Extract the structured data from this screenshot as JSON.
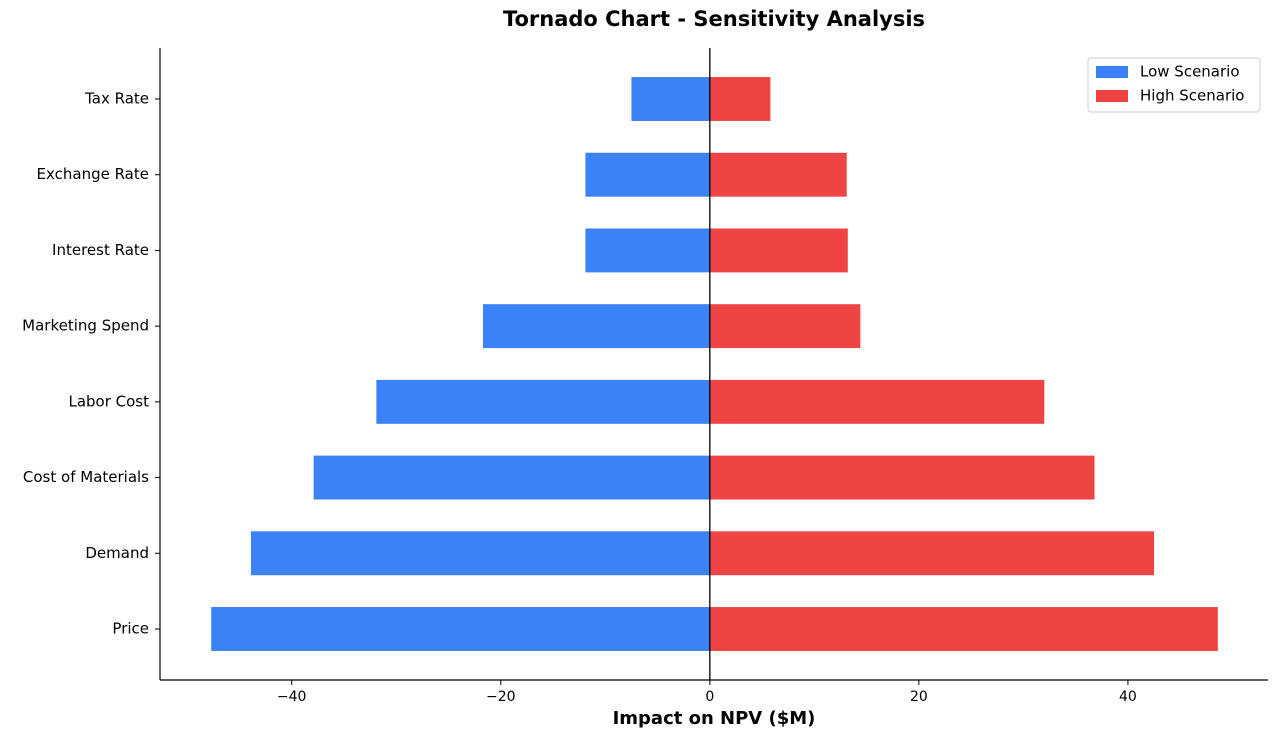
{
  "chart_data": {
    "type": "tornado",
    "title": "Tornado Chart - Sensitivity Analysis",
    "x_label": "Impact on NPV ($M)",
    "categories": [
      "Price",
      "Demand",
      "Cost of Materials",
      "Labor Cost",
      "Marketing Spend",
      "Interest Rate",
      "Exchange Rate",
      "Tax Rate"
    ],
    "series": [
      {
        "name": "Low Scenario",
        "color": "#3b82f6",
        "values": [
          -47.7,
          -43.9,
          -37.9,
          -31.9,
          -21.7,
          -11.9,
          -11.9,
          -7.5
        ]
      },
      {
        "name": "High Scenario",
        "color": "#ef4444",
        "values": [
          48.6,
          42.5,
          36.8,
          32.0,
          14.4,
          13.2,
          13.1,
          5.8
        ]
      }
    ],
    "xlim": [
      -52.6,
      53.4
    ],
    "xticks": [
      {
        "value": -40,
        "label": "−40"
      },
      {
        "value": -20,
        "label": "−20"
      },
      0,
      20,
      40
    ],
    "legend": "upper right"
  }
}
